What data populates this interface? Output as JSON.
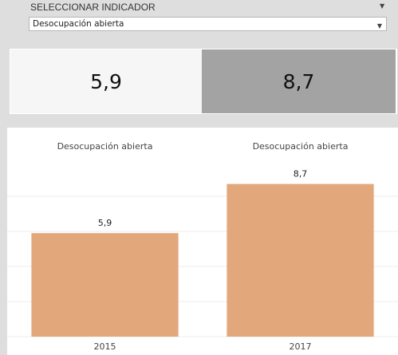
{
  "filter": {
    "label": "SELECCIONAR INDICADOR",
    "selected": "Desocupación abierta"
  },
  "kpis": [
    "5,9",
    "8,7"
  ],
  "chart_data": {
    "type": "bar",
    "titles": [
      "Desocupación abierta",
      "Desocupación abierta"
    ],
    "categories": [
      "2015",
      "2017"
    ],
    "values": [
      5.9,
      8.7
    ],
    "value_labels": [
      "5,9",
      "8,7"
    ],
    "color": "#e3a77c",
    "ylim": [
      0,
      10
    ],
    "yticks": [
      0,
      2,
      4,
      6,
      8
    ],
    "grid": true
  }
}
